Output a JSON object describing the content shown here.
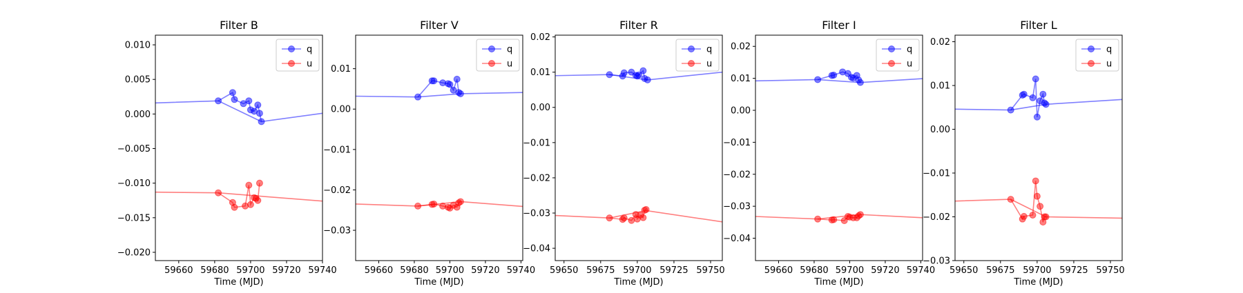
{
  "chart_data": [
    {
      "type": "line",
      "title": "Filter B",
      "xlabel": "Time (MJD)",
      "ylabel": "",
      "xlim": [
        59647,
        59740
      ],
      "ylim": [
        -0.0212,
        0.0114
      ],
      "xticks": [
        59660,
        59680,
        59700,
        59720,
        59740
      ],
      "yticks": [
        -0.02,
        -0.015,
        -0.01,
        -0.005,
        0.0,
        0.005,
        0.01
      ],
      "ytick_labels": [
        "−0.020",
        "−0.015",
        "−0.010",
        "−0.005",
        "0.000",
        "0.005",
        "0.010"
      ],
      "legend": "top-right",
      "series": [
        {
          "name": "q",
          "color": "#0000ff",
          "points": [
            [
              59682,
              0.0019
            ],
            [
              59690,
              0.0031
            ],
            [
              59691,
              0.0021
            ],
            [
              59696,
              0.0015
            ],
            [
              59699,
              0.0019
            ],
            [
              59700,
              0.0006
            ],
            [
              59702,
              0.0004
            ],
            [
              59704,
              0.0013
            ],
            [
              59705,
              0.0001
            ],
            [
              59706,
              -0.0011
            ]
          ],
          "fit": [
            [
              59647,
              0.0016
            ],
            [
              59682,
              0.0019
            ],
            [
              59706,
              -0.0011
            ],
            [
              59740,
              0.0001
            ]
          ]
        },
        {
          "name": "u",
          "color": "#ff0000",
          "points": [
            [
              59682,
              -0.0114
            ],
            [
              59690,
              -0.0128
            ],
            [
              59691,
              -0.0135
            ],
            [
              59697,
              -0.0133
            ],
            [
              59699,
              -0.0103
            ],
            [
              59700,
              -0.0131
            ],
            [
              59702,
              -0.0121
            ],
            [
              59703,
              -0.0122
            ],
            [
              59704,
              -0.0125
            ],
            [
              59705,
              -0.01
            ]
          ],
          "fit": [
            [
              59647,
              -0.0113
            ],
            [
              59682,
              -0.0114
            ],
            [
              59706,
              -0.0119
            ],
            [
              59740,
              -0.0126
            ]
          ]
        }
      ]
    },
    {
      "type": "line",
      "title": "Filter V",
      "xlabel": "Time (MJD)",
      "ylabel": "",
      "xlim": [
        59647,
        59741
      ],
      "ylim": [
        -0.0375,
        0.0183
      ],
      "xticks": [
        59660,
        59680,
        59700,
        59720,
        59740
      ],
      "yticks": [
        -0.03,
        -0.02,
        -0.01,
        0.0,
        0.01
      ],
      "ytick_labels": [
        "−0.03",
        "−0.02",
        "−0.01",
        "0.00",
        "0.01"
      ],
      "legend": "top-right",
      "series": [
        {
          "name": "q",
          "color": "#0000ff",
          "points": [
            [
              59682,
              0.003
            ],
            [
              59690,
              0.007
            ],
            [
              59691,
              0.007
            ],
            [
              59696,
              0.0065
            ],
            [
              59699,
              0.0063
            ],
            [
              59700,
              0.0061
            ],
            [
              59702,
              0.0047
            ],
            [
              59704,
              0.0074
            ],
            [
              59705,
              0.0041
            ],
            [
              59706,
              0.0038
            ]
          ],
          "fit": [
            [
              59647,
              0.0032
            ],
            [
              59682,
              0.003
            ],
            [
              59706,
              0.0038
            ],
            [
              59741,
              0.0041
            ]
          ]
        },
        {
          "name": "u",
          "color": "#ff0000",
          "points": [
            [
              59682,
              -0.024
            ],
            [
              59690,
              -0.0236
            ],
            [
              59691,
              -0.0235
            ],
            [
              59696,
              -0.024
            ],
            [
              59699,
              -0.0243
            ],
            [
              59700,
              -0.0245
            ],
            [
              59702,
              -0.0238
            ],
            [
              59704,
              -0.0243
            ],
            [
              59705,
              -0.0232
            ],
            [
              59706,
              -0.0229
            ]
          ],
          "fit": [
            [
              59647,
              -0.0235
            ],
            [
              59682,
              -0.024
            ],
            [
              59706,
              -0.0229
            ],
            [
              59741,
              -0.0241
            ]
          ]
        }
      ]
    },
    {
      "type": "line",
      "title": "Filter R",
      "xlabel": "Time (MJD)",
      "ylabel": "",
      "xlim": [
        59644,
        59758
      ],
      "ylim": [
        -0.0435,
        0.0205
      ],
      "xticks": [
        59650,
        59675,
        59700,
        59725,
        59750
      ],
      "yticks": [
        -0.04,
        -0.03,
        -0.02,
        -0.01,
        0.0,
        0.01,
        0.02
      ],
      "ytick_labels": [
        "−0.04",
        "−0.03",
        "−0.02",
        "−0.01",
        "0.00",
        "0.01",
        "0.02"
      ],
      "legend": "top-right",
      "series": [
        {
          "name": "q",
          "color": "#0000ff",
          "points": [
            [
              59681,
              0.0093
            ],
            [
              59690,
              0.0089
            ],
            [
              59691,
              0.0098
            ],
            [
              59696,
              0.01
            ],
            [
              59699,
              0.0091
            ],
            [
              59700,
              0.0089
            ],
            [
              59701,
              0.0092
            ],
            [
              59704,
              0.0104
            ],
            [
              59705,
              0.0082
            ],
            [
              59707,
              0.0078
            ]
          ],
          "fit": [
            [
              59644,
              0.009
            ],
            [
              59681,
              0.0093
            ],
            [
              59707,
              0.0078
            ],
            [
              59758,
              0.01
            ]
          ]
        },
        {
          "name": "u",
          "color": "#ff0000",
          "points": [
            [
              59681,
              -0.0314
            ],
            [
              59690,
              -0.0318
            ],
            [
              59691,
              -0.0314
            ],
            [
              59696,
              -0.0321
            ],
            [
              59699,
              -0.0304
            ],
            [
              59700,
              -0.0317
            ],
            [
              59702,
              -0.0306
            ],
            [
              59704,
              -0.0313
            ],
            [
              59705,
              -0.0292
            ],
            [
              59706,
              -0.029
            ]
          ],
          "fit": [
            [
              59644,
              -0.0307
            ],
            [
              59681,
              -0.0314
            ],
            [
              59706,
              -0.0293
            ],
            [
              59758,
              -0.0325
            ]
          ]
        }
      ]
    },
    {
      "type": "line",
      "title": "Filter I",
      "xlabel": "Time (MJD)",
      "ylabel": "",
      "xlim": [
        59647,
        59741
      ],
      "ylim": [
        -0.047,
        0.0235
      ],
      "xticks": [
        59660,
        59680,
        59700,
        59720,
        59740
      ],
      "yticks": [
        -0.04,
        -0.03,
        -0.02,
        -0.01,
        0.0,
        0.01,
        0.02
      ],
      "ytick_labels": [
        "−0.04",
        "−0.03",
        "−0.02",
        "−0.01",
        "0.00",
        "0.01",
        "0.02"
      ],
      "legend": "top-right",
      "series": [
        {
          "name": "q",
          "color": "#0000ff",
          "points": [
            [
              59682,
              0.0096
            ],
            [
              59690,
              0.0109
            ],
            [
              59691,
              0.011
            ],
            [
              59696,
              0.012
            ],
            [
              59699,
              0.0115
            ],
            [
              59701,
              0.0103
            ],
            [
              59702,
              0.0101
            ],
            [
              59704,
              0.0109
            ],
            [
              59705,
              0.0095
            ],
            [
              59706,
              0.0087
            ]
          ],
          "fit": [
            [
              59647,
              0.0092
            ],
            [
              59682,
              0.0096
            ],
            [
              59706,
              0.0087
            ],
            [
              59741,
              0.0099
            ]
          ]
        },
        {
          "name": "u",
          "color": "#ff0000",
          "points": [
            [
              59682,
              -0.034
            ],
            [
              59690,
              -0.0343
            ],
            [
              59691,
              -0.0342
            ],
            [
              59697,
              -0.0345
            ],
            [
              59699,
              -0.0332
            ],
            [
              59700,
              -0.0334
            ],
            [
              59702,
              -0.0336
            ],
            [
              59704,
              -0.0336
            ],
            [
              59705,
              -0.033
            ],
            [
              59706,
              -0.0326
            ]
          ],
          "fit": [
            [
              59647,
              -0.0332
            ],
            [
              59682,
              -0.034
            ],
            [
              59706,
              -0.0326
            ],
            [
              59741,
              -0.0336
            ]
          ]
        }
      ]
    },
    {
      "type": "line",
      "title": "Filter L",
      "xlabel": "Time (MJD)",
      "ylabel": "",
      "xlim": [
        59644,
        59758
      ],
      "ylim": [
        -0.03,
        0.0215
      ],
      "xticks": [
        59650,
        59675,
        59700,
        59725,
        59750
      ],
      "yticks": [
        -0.03,
        -0.02,
        -0.01,
        0.0,
        0.01,
        0.02
      ],
      "ytick_labels": [
        "−0.03",
        "−0.02",
        "−0.01",
        "0.00",
        "0.01",
        "0.02"
      ],
      "legend": "top-right",
      "series": [
        {
          "name": "q",
          "color": "#0000ff",
          "points": [
            [
              59682,
              0.0044
            ],
            [
              59690,
              0.0078
            ],
            [
              59691,
              0.008
            ],
            [
              59697,
              0.0072
            ],
            [
              59699,
              0.0115
            ],
            [
              59700,
              0.0028
            ],
            [
              59702,
              0.0065
            ],
            [
              59704,
              0.008
            ],
            [
              59705,
              0.006
            ],
            [
              59706,
              0.0057
            ]
          ],
          "fit": [
            [
              59644,
              0.0046
            ],
            [
              59682,
              0.0044
            ],
            [
              59706,
              0.0057
            ],
            [
              59758,
              0.0068
            ]
          ]
        },
        {
          "name": "u",
          "color": "#ff0000",
          "points": [
            [
              59682,
              -0.016
            ],
            [
              59690,
              -0.0205
            ],
            [
              59691,
              -0.0199
            ],
            [
              59697,
              -0.0196
            ],
            [
              59699,
              -0.0118
            ],
            [
              59700,
              -0.0153
            ],
            [
              59702,
              -0.0176
            ],
            [
              59704,
              -0.0212
            ],
            [
              59705,
              -0.02
            ],
            [
              59706,
              -0.02
            ]
          ],
          "fit": [
            [
              59644,
              -0.0164
            ],
            [
              59682,
              -0.016
            ],
            [
              59706,
              -0.02
            ],
            [
              59758,
              -0.0203
            ]
          ]
        }
      ]
    }
  ]
}
